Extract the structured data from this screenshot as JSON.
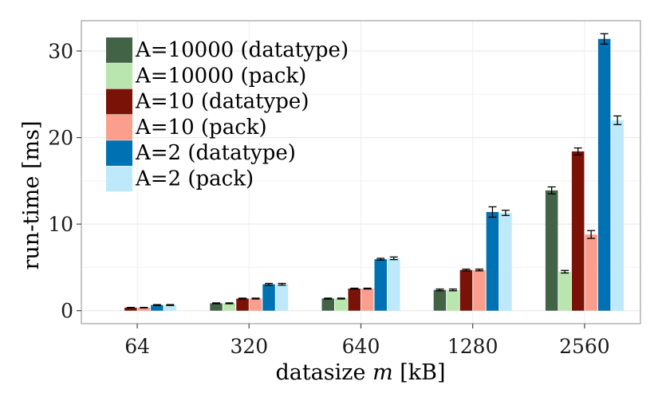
{
  "chart_data": {
    "type": "bar",
    "title": "",
    "xlabel": "datasize m [kB]",
    "xlabel_prefix": "datasize ",
    "xlabel_var": "m",
    "xlabel_suffix": " [kB]",
    "ylabel": "run-time [ms]",
    "ylim": [
      -1.5,
      33.5
    ],
    "yticks": [
      0,
      10,
      20,
      30
    ],
    "grid": true,
    "legend_position": "top-left",
    "categories": [
      "64",
      "320",
      "640",
      "1280",
      "2560"
    ],
    "series": [
      {
        "name": "A=10000 (datatype)",
        "color": "#436346",
        "values": [
          null,
          0.85,
          1.4,
          2.4,
          13.9
        ],
        "errors": [
          null,
          0.05,
          0.05,
          0.1,
          0.4
        ]
      },
      {
        "name": "A=10000 (pack)",
        "color": "#b8e6ae",
        "values": [
          null,
          0.85,
          1.4,
          2.4,
          4.5
        ],
        "errors": [
          null,
          0.05,
          0.05,
          0.1,
          0.15
        ]
      },
      {
        "name": "A=10 (datatype)",
        "color": "#7a1208",
        "values": [
          0.35,
          1.4,
          2.55,
          4.7,
          18.4
        ],
        "errors": [
          0.03,
          0.05,
          0.05,
          0.1,
          0.4
        ]
      },
      {
        "name": "A=10 (pack)",
        "color": "#fc9e8e",
        "values": [
          0.35,
          1.4,
          2.55,
          4.7,
          8.8
        ],
        "errors": [
          0.03,
          0.05,
          0.05,
          0.1,
          0.45
        ]
      },
      {
        "name": "A=2 (datatype)",
        "color": "#0071b2",
        "values": [
          0.65,
          3.05,
          5.95,
          11.4,
          31.4
        ],
        "errors": [
          0.05,
          0.1,
          0.1,
          0.6,
          0.6
        ]
      },
      {
        "name": "A=2 (pack)",
        "color": "#bde9fb",
        "values": [
          0.65,
          3.05,
          6.05,
          11.3,
          22.0
        ],
        "errors": [
          0.05,
          0.1,
          0.15,
          0.3,
          0.5
        ]
      }
    ]
  }
}
